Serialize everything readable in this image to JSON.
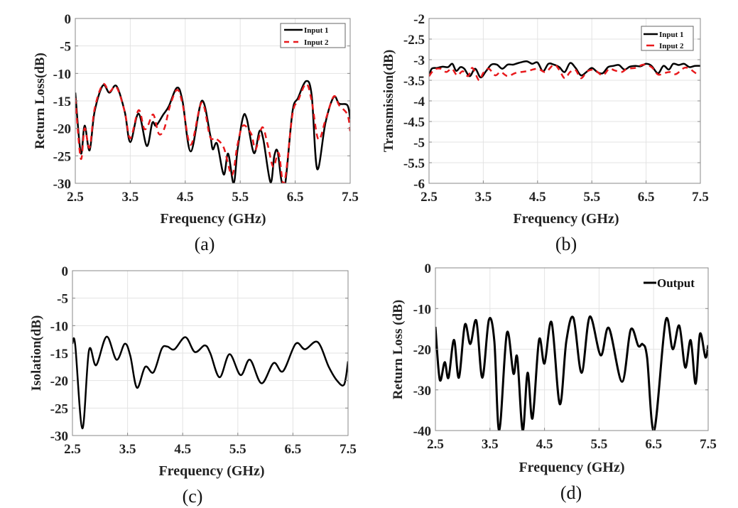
{
  "chart_data": [
    {
      "id": "a",
      "type": "line",
      "caption": "(a)",
      "title": "",
      "xlabel": "Frequency (GHz)",
      "ylabel": "Return Loss(dB)",
      "xlim": [
        2.5,
        7.5
      ],
      "ylim": [
        -30,
        0
      ],
      "xticks": [
        2.5,
        3.5,
        4.5,
        5.5,
        6.5,
        7.5
      ],
      "xtick_labels": [
        "2.5",
        "3.5",
        "4.5",
        "5.5",
        "6.5",
        "7.5"
      ],
      "yticks": [
        0,
        -5,
        -10,
        -15,
        -20,
        -25,
        -30
      ],
      "ytick_labels": [
        "0",
        "-5",
        "-10",
        "-15",
        "-20",
        "-25",
        "-30"
      ],
      "grid": true,
      "legend": {
        "placement": "top-right",
        "boxed": true
      },
      "series": [
        {
          "name": "Input 1",
          "color": "#000000",
          "style": "solid",
          "x": [
            2.5,
            2.6,
            2.67,
            2.76,
            2.85,
            3.0,
            3.12,
            3.25,
            3.4,
            3.5,
            3.65,
            3.8,
            3.9,
            3.97,
            4.1,
            4.2,
            4.35,
            4.45,
            4.6,
            4.8,
            4.95,
            5.0,
            5.08,
            5.2,
            5.28,
            5.38,
            5.45,
            5.55,
            5.62,
            5.75,
            5.85,
            5.92,
            6.05,
            6.12,
            6.18,
            6.25,
            6.32,
            6.45,
            6.55,
            6.7,
            6.8,
            6.9,
            7.05,
            7.2,
            7.3,
            7.45,
            7.5
          ],
          "y": [
            -13.5,
            -24.5,
            -19.5,
            -24,
            -17,
            -12.2,
            -13.5,
            -12.3,
            -17,
            -22.5,
            -17.3,
            -23.2,
            -19,
            -19.5,
            -17.5,
            -16,
            -12.6,
            -15,
            -24.2,
            -15,
            -21,
            -23.8,
            -22.8,
            -28.4,
            -24.6,
            -30,
            -24,
            -18,
            -18.3,
            -24.5,
            -20.5,
            -22,
            -29.8,
            -25,
            -24.2,
            -29.5,
            -30,
            -17,
            -14.5,
            -11.4,
            -14,
            -27.4,
            -19,
            -14.3,
            -15.5,
            -15.8,
            -18.3
          ]
        },
        {
          "name": "Input 2",
          "color": "#e8191c",
          "style": "dashed",
          "x": [
            2.5,
            2.6,
            2.67,
            2.76,
            2.85,
            3.0,
            3.12,
            3.25,
            3.4,
            3.5,
            3.65,
            3.75,
            3.82,
            3.92,
            4.02,
            4.12,
            4.22,
            4.35,
            4.45,
            4.6,
            4.8,
            4.95,
            5.05,
            5.2,
            5.35,
            5.45,
            5.55,
            5.7,
            5.78,
            5.9,
            6.0,
            6.1,
            6.2,
            6.3,
            6.45,
            6.55,
            6.7,
            6.8,
            6.92,
            7.05,
            7.2,
            7.3,
            7.45,
            7.5
          ],
          "y": [
            -14.5,
            -25.5,
            -20,
            -23.5,
            -16.5,
            -12,
            -13.3,
            -12.5,
            -17,
            -21.8,
            -16.7,
            -20,
            -19.5,
            -17.5,
            -21,
            -20,
            -16,
            -13,
            -15.5,
            -23,
            -15.3,
            -21.5,
            -21.8,
            -23.5,
            -28.5,
            -23,
            -19.5,
            -21,
            -23.8,
            -19.8,
            -23,
            -27,
            -24.5,
            -30,
            -17.5,
            -15,
            -11.9,
            -15,
            -22,
            -18.5,
            -14.2,
            -15.8,
            -17.5,
            -20.5
          ]
        }
      ]
    },
    {
      "id": "b",
      "type": "line",
      "caption": "(b)",
      "title": "",
      "xlabel": "Frequency (GHz)",
      "ylabel": "Transmission(dB)",
      "xlim": [
        2.5,
        7.5
      ],
      "ylim": [
        -6,
        -2
      ],
      "xticks": [
        2.5,
        3.5,
        4.5,
        5.5,
        6.5,
        7.5
      ],
      "xtick_labels": [
        "2.5",
        "3.5",
        "4.5",
        "5.5",
        "6.5",
        "7.5"
      ],
      "yticks": [
        -2,
        -2.5,
        -3,
        -3.5,
        -4,
        -4.5,
        -5,
        -5.5,
        -6
      ],
      "ytick_labels": [
        "-2",
        "-2.5",
        "-3",
        "-3.5",
        "-4",
        "-4.5",
        "-5",
        "-5.5",
        "-6"
      ],
      "grid": true,
      "legend": {
        "placement": "top-right",
        "boxed": true
      },
      "series": [
        {
          "name": "Input 1",
          "color": "#000000",
          "style": "solid",
          "x": [
            2.5,
            2.55,
            2.65,
            2.75,
            2.85,
            2.93,
            3.0,
            3.08,
            3.15,
            3.25,
            3.35,
            3.45,
            3.55,
            3.65,
            3.75,
            3.85,
            3.95,
            4.05,
            4.15,
            4.3,
            4.4,
            4.5,
            4.6,
            4.7,
            4.8,
            4.9,
            5.0,
            5.1,
            5.2,
            5.3,
            5.4,
            5.5,
            5.6,
            5.7,
            5.8,
            5.9,
            6.0,
            6.1,
            6.2,
            6.3,
            6.4,
            6.5,
            6.6,
            6.72,
            6.82,
            6.92,
            7.0,
            7.1,
            7.2,
            7.3,
            7.4,
            7.5
          ],
          "y": [
            -3.4,
            -3.22,
            -3.2,
            -3.17,
            -3.18,
            -3.1,
            -3.27,
            -3.18,
            -3.22,
            -3.4,
            -3.22,
            -3.43,
            -3.28,
            -3.12,
            -3.12,
            -3.22,
            -3.12,
            -3.12,
            -3.08,
            -3.04,
            -3.1,
            -3.07,
            -3.28,
            -3.1,
            -3.12,
            -3.18,
            -3.3,
            -3.08,
            -3.2,
            -3.38,
            -3.3,
            -3.2,
            -3.3,
            -3.33,
            -3.18,
            -3.15,
            -3.13,
            -3.24,
            -3.17,
            -3.15,
            -3.16,
            -3.1,
            -3.15,
            -3.33,
            -3.15,
            -3.24,
            -3.1,
            -3.13,
            -3.1,
            -3.18,
            -3.15,
            -3.15
          ]
        },
        {
          "name": "Input 2",
          "color": "#e8191c",
          "style": "dashed",
          "x": [
            2.5,
            2.6,
            2.72,
            2.82,
            2.92,
            3.02,
            3.12,
            3.22,
            3.3,
            3.42,
            3.5,
            3.6,
            3.72,
            3.82,
            3.95,
            4.1,
            4.3,
            4.5,
            4.65,
            4.8,
            4.9,
            5.0,
            5.1,
            5.2,
            5.3,
            5.42,
            5.55,
            5.7,
            5.82,
            5.92,
            6.05,
            6.15,
            6.3,
            6.45,
            6.6,
            6.72,
            6.85,
            6.95,
            7.05,
            7.2,
            7.3,
            7.42,
            7.5
          ],
          "y": [
            -3.4,
            -3.24,
            -3.22,
            -3.3,
            -3.22,
            -3.38,
            -3.28,
            -3.4,
            -3.2,
            -3.5,
            -3.32,
            -3.22,
            -3.38,
            -3.3,
            -3.4,
            -3.32,
            -3.28,
            -3.22,
            -3.3,
            -3.12,
            -3.25,
            -3.45,
            -3.3,
            -3.25,
            -3.45,
            -3.28,
            -3.25,
            -3.38,
            -3.22,
            -3.26,
            -3.3,
            -3.22,
            -3.2,
            -3.12,
            -3.18,
            -3.36,
            -3.32,
            -3.3,
            -3.35,
            -3.2,
            -3.22,
            -3.33,
            -3.35
          ]
        }
      ]
    },
    {
      "id": "c",
      "type": "line",
      "caption": "(c)",
      "title": "",
      "xlabel": "Frequency (GHz)",
      "ylabel": "Isolation(dB)",
      "xlim": [
        2.5,
        7.5
      ],
      "ylim": [
        -30,
        0
      ],
      "xticks": [
        2.5,
        3.5,
        4.5,
        5.5,
        6.5,
        7.5
      ],
      "xtick_labels": [
        "2.5",
        "3.5",
        "4.5",
        "5.5",
        "6.5",
        "7.5"
      ],
      "yticks": [
        0,
        -5,
        -10,
        -15,
        -20,
        -25,
        -30
      ],
      "ytick_labels": [
        "0",
        "-5",
        "-10",
        "-15",
        "-20",
        "-25",
        "-30"
      ],
      "grid": true,
      "legend": null,
      "series": [
        {
          "name": "Isolation",
          "color": "#000000",
          "style": "solid",
          "x": [
            2.5,
            2.55,
            2.68,
            2.8,
            2.93,
            3.12,
            3.3,
            3.45,
            3.55,
            3.67,
            3.82,
            3.97,
            4.12,
            4.22,
            4.35,
            4.55,
            4.72,
            4.9,
            5.0,
            5.17,
            5.35,
            5.55,
            5.72,
            5.93,
            6.15,
            6.32,
            6.55,
            6.72,
            6.95,
            7.15,
            7.3,
            7.43,
            7.5
          ],
          "y": [
            -13.2,
            -13.5,
            -28.7,
            -14.5,
            -17.2,
            -12,
            -16.2,
            -13.3,
            -15.5,
            -21.3,
            -17.5,
            -18.5,
            -14.2,
            -13.8,
            -14.3,
            -12.1,
            -14.8,
            -13.6,
            -15,
            -19.4,
            -15.2,
            -19,
            -16.2,
            -20.5,
            -16.8,
            -18.3,
            -13.3,
            -14.3,
            -13,
            -17.5,
            -20,
            -20.7,
            -16.5
          ]
        }
      ]
    },
    {
      "id": "d",
      "type": "line",
      "caption": "(d)",
      "title": "",
      "xlabel": "Frequency (GHz)",
      "ylabel": "Return Loss (dB)",
      "xlim": [
        2.5,
        7.5
      ],
      "ylim": [
        -40,
        0
      ],
      "xticks": [
        2.5,
        3.5,
        4.5,
        5.5,
        6.5,
        7.5
      ],
      "xtick_labels": [
        "2.5",
        "3.5",
        "4.5",
        "5.5",
        "6.5",
        "7.5"
      ],
      "yticks": [
        0,
        -10,
        -20,
        -30,
        -40
      ],
      "ytick_labels": [
        "0",
        "-10",
        "-20",
        "-30",
        "-40"
      ],
      "grid": true,
      "legend": {
        "placement": "top-right",
        "boxed": false
      },
      "series": [
        {
          "name": "Output",
          "color": "#000000",
          "style": "solid",
          "x": [
            2.5,
            2.58,
            2.67,
            2.74,
            2.84,
            2.93,
            3.04,
            3.14,
            3.25,
            3.36,
            3.48,
            3.58,
            3.67,
            3.81,
            3.93,
            4.0,
            4.1,
            4.19,
            4.28,
            4.4,
            4.5,
            4.63,
            4.78,
            4.9,
            5.03,
            5.18,
            5.33,
            5.53,
            5.68,
            5.92,
            6.08,
            6.22,
            6.3,
            6.38,
            6.51,
            6.72,
            6.85,
            6.97,
            7.08,
            7.18,
            7.27,
            7.35,
            7.45,
            7.5
          ],
          "y": [
            -14.5,
            -27.5,
            -23.2,
            -27,
            -17.7,
            -27,
            -14,
            -18.7,
            -13,
            -27,
            -12.8,
            -18,
            -40,
            -16,
            -26,
            -22,
            -40,
            -25.8,
            -37,
            -17.7,
            -23.5,
            -13.4,
            -33.5,
            -18,
            -12.3,
            -25.8,
            -12,
            -21.5,
            -14.8,
            -28,
            -15.2,
            -19.2,
            -18.8,
            -22,
            -40,
            -13,
            -20,
            -14.2,
            -24.5,
            -17.8,
            -28.5,
            -16.2,
            -22,
            -19
          ]
        }
      ]
    }
  ]
}
